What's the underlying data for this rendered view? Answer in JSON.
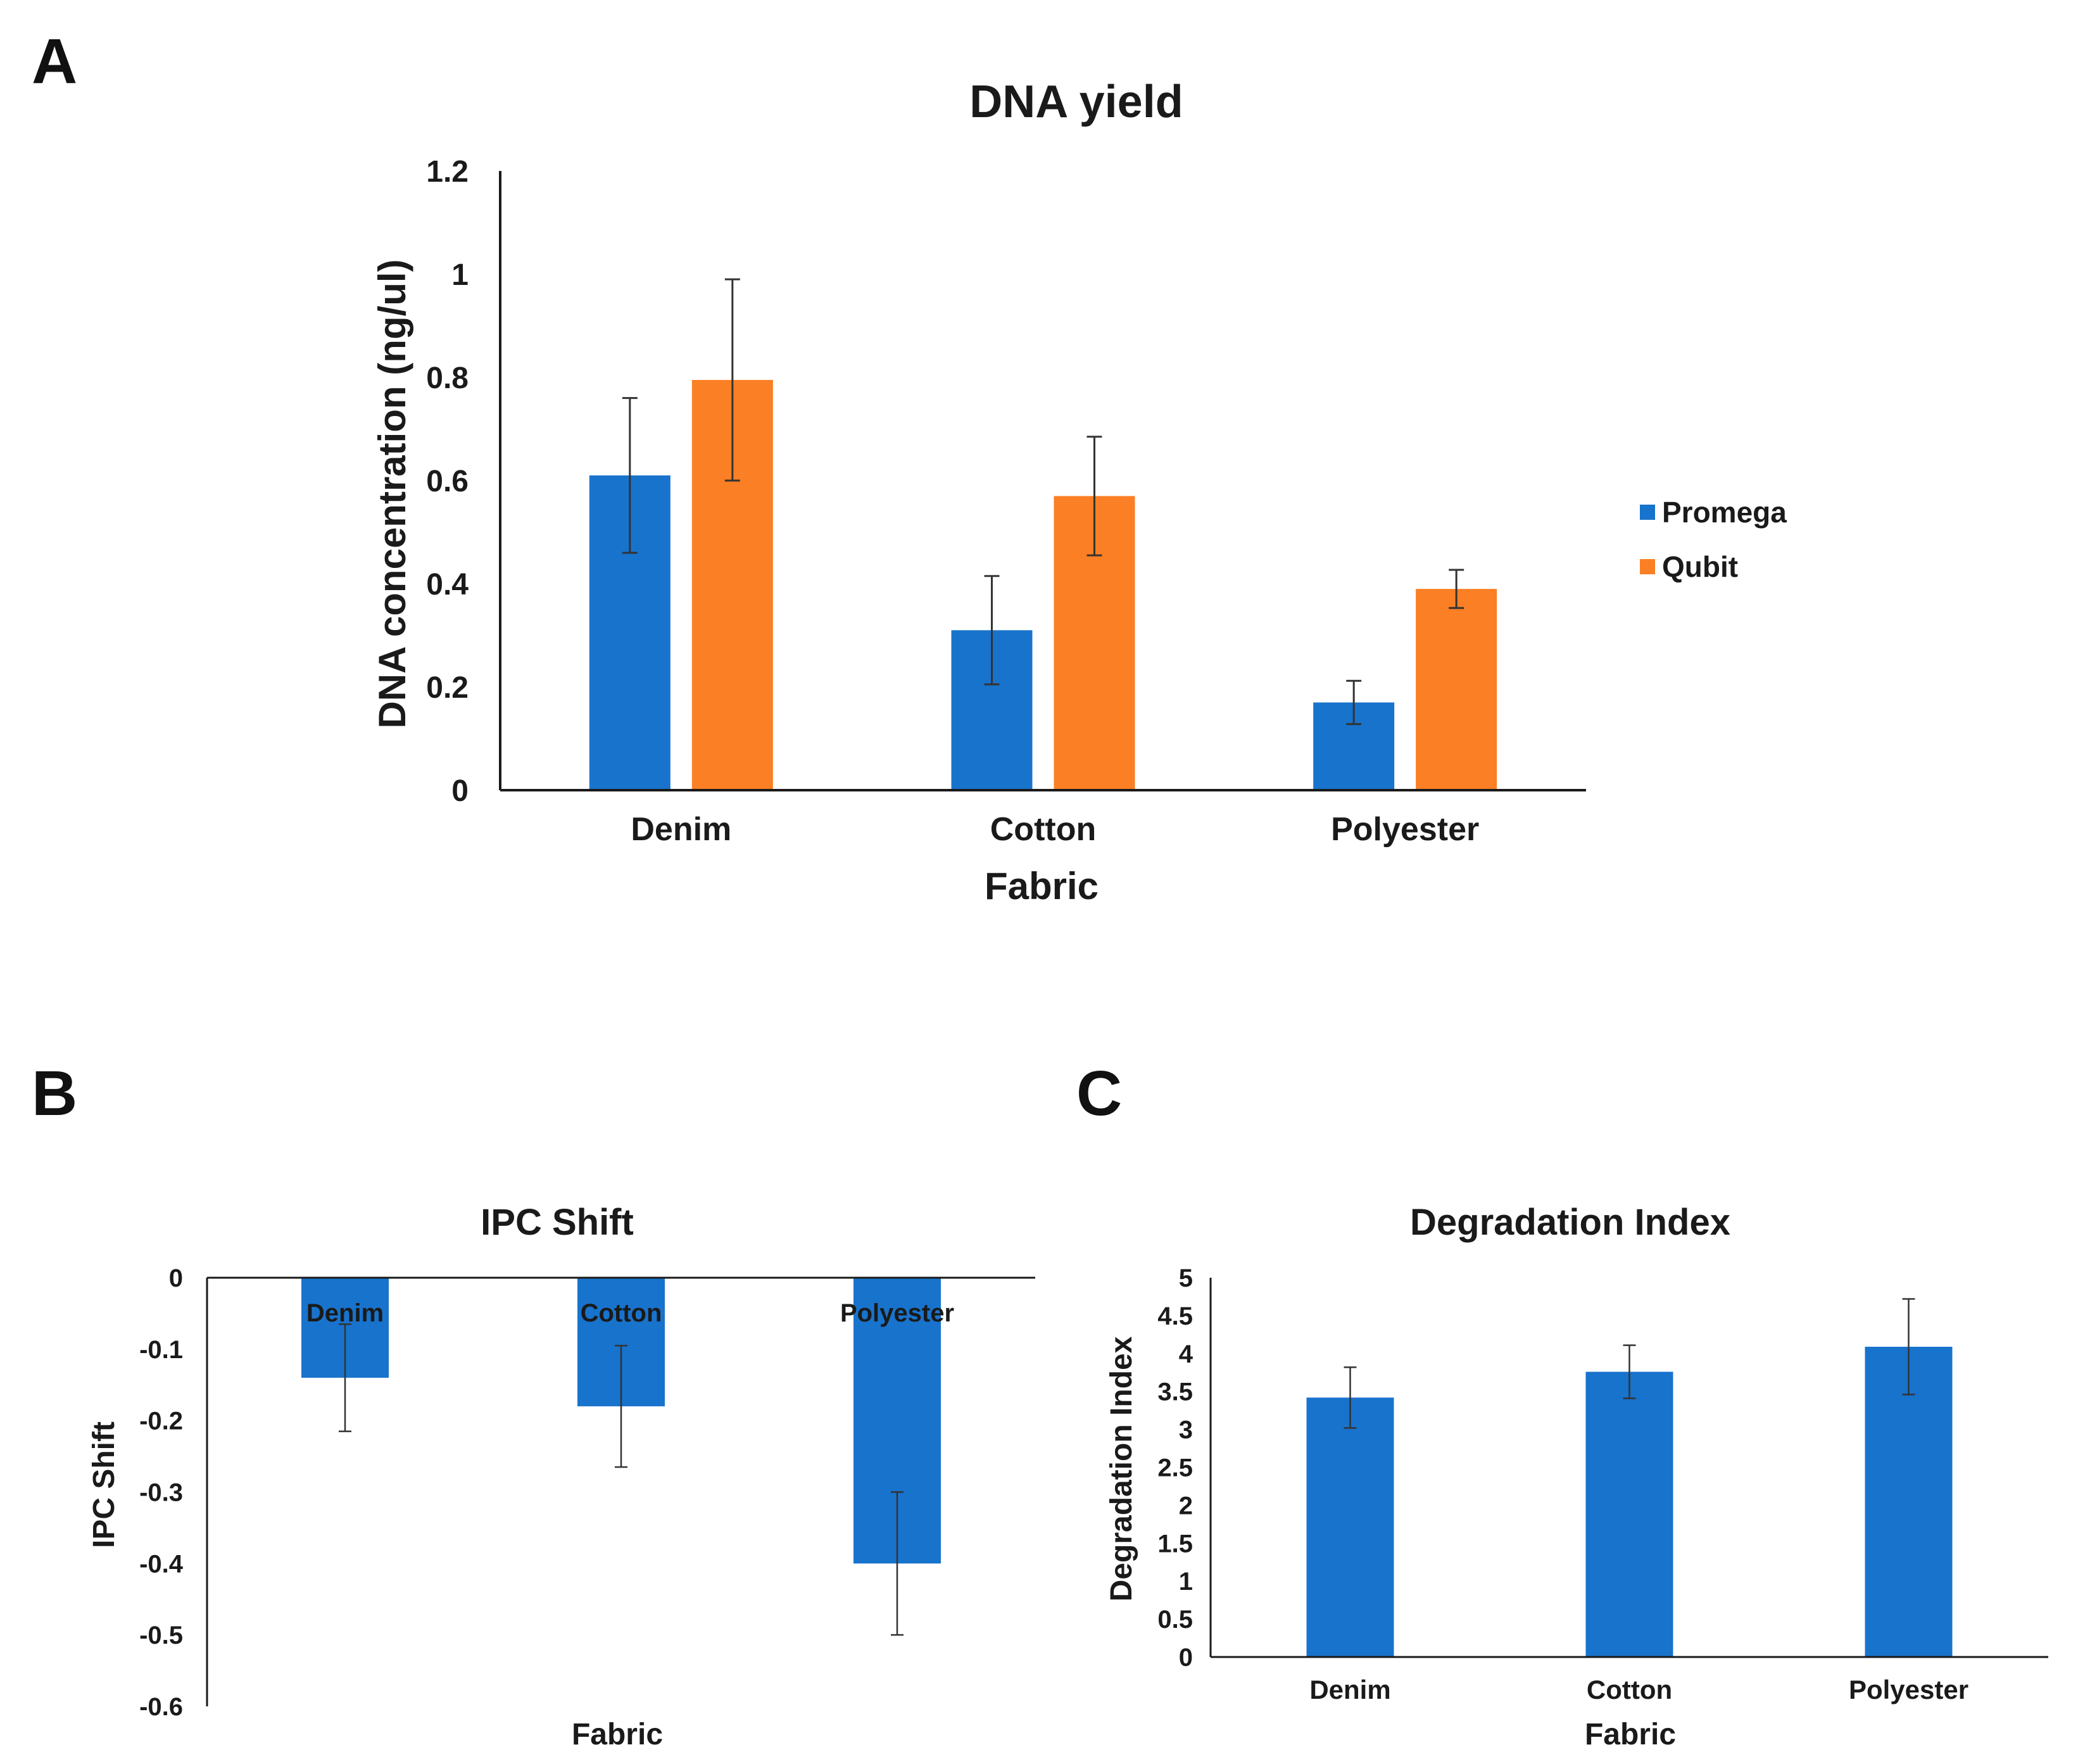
{
  "figure": {
    "panel_labels": [
      "A",
      "B",
      "C"
    ]
  },
  "colors": {
    "promega": "#1873cc",
    "qubit": "#fb7f24",
    "single": "#1873cc",
    "axis": "#1a1a1a",
    "errorbar": "#333333"
  },
  "chart_data": [
    {
      "id": "A",
      "type": "bar",
      "title": "DNA yield",
      "xlabel": "Fabric",
      "ylabel": "DNA concentration (ng/ul)",
      "categories": [
        "Denim",
        "Cotton",
        "Polyester"
      ],
      "series": [
        {
          "name": "Promega",
          "values": [
            0.61,
            0.31,
            0.17
          ],
          "errors": [
            0.15,
            0.105,
            0.042
          ]
        },
        {
          "name": "Qubit",
          "values": [
            0.795,
            0.57,
            0.39
          ],
          "errors": [
            0.195,
            0.115,
            0.037
          ]
        }
      ],
      "ylim": [
        0,
        1.2
      ],
      "yticks": [
        "0",
        "0.2",
        "0.4",
        "0.6",
        "0.8",
        "1",
        "1.2"
      ],
      "grid": false,
      "legend": "right"
    },
    {
      "id": "B",
      "type": "bar",
      "title": "IPC Shift",
      "xlabel": "Fabric",
      "ylabel": "IPC Shift",
      "categories": [
        "Denim",
        "Cotton",
        "Polyester"
      ],
      "values": [
        -0.14,
        -0.18,
        -0.4
      ],
      "errors": [
        0.075,
        0.085,
        0.1
      ],
      "ylim": [
        -0.6,
        0
      ],
      "yticks": [
        "0",
        "-0.1",
        "-0.2",
        "-0.3",
        "-0.4",
        "-0.5",
        "-0.6"
      ],
      "grid": false
    },
    {
      "id": "C",
      "type": "bar",
      "title": "Degradation Index",
      "xlabel": "Fabric",
      "ylabel": "Degradation Index",
      "categories": [
        "Denim",
        "Cotton",
        "Polyester"
      ],
      "values": [
        3.42,
        3.76,
        4.09
      ],
      "errors": [
        0.4,
        0.35,
        0.63
      ],
      "ylim": [
        0,
        5
      ],
      "yticks": [
        "0",
        "0.5",
        "1",
        "1.5",
        "2",
        "2.5",
        "3",
        "3.5",
        "4",
        "4.5",
        "5"
      ],
      "grid": false
    }
  ]
}
